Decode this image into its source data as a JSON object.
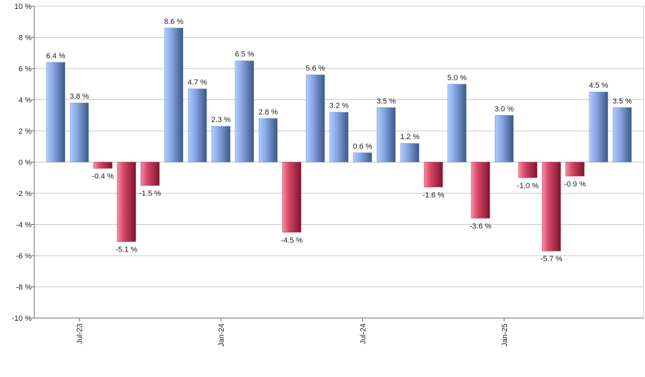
{
  "chart_data": {
    "type": "bar",
    "categories": [
      null,
      "Jul-23",
      null,
      null,
      null,
      null,
      null,
      "Jan-24",
      null,
      null,
      null,
      null,
      null,
      "Jul-24",
      null,
      null,
      null,
      null,
      null,
      "Jan-25",
      null,
      null,
      null,
      null,
      null
    ],
    "values": [
      6.4,
      3.8,
      -0.4,
      -5.1,
      -1.5,
      8.6,
      4.7,
      2.3,
      6.5,
      2.8,
      -4.5,
      5.6,
      3.2,
      0.6,
      3.5,
      1.2,
      -1.6,
      5.0,
      -3.6,
      3.0,
      -1.0,
      -5.7,
      -0.9,
      4.5,
      3.5
    ],
    "value_labels": [
      "6.4 %",
      "3.8 %",
      "-0.4 %",
      "-5.1 %",
      "-1.5 %",
      "8.6 %",
      "4.7 %",
      "2.3 %",
      "6.5 %",
      "2.8 %",
      "-4.5 %",
      "5.6 %",
      "3.2 %",
      "0.6 %",
      "3.5 %",
      "1.2 %",
      "-1.6 %",
      "5.0 %",
      "-3.6 %",
      "3.0 %",
      "-1.0 %",
      "-5.7 %",
      "-0.9 %",
      "4.5 %",
      "3.5 %"
    ],
    "positive_color": "#6f8fcc",
    "negative_color": "#c4304f",
    "ylim": [
      -10,
      10
    ],
    "yticks": [
      {
        "value": -10,
        "label": "-10 %"
      },
      {
        "value": -8,
        "label": "-8 %"
      },
      {
        "value": -6,
        "label": "-6 %"
      },
      {
        "value": -4,
        "label": "-4 %"
      },
      {
        "value": -2,
        "label": "-2 %"
      },
      {
        "value": 0,
        "label": "0 %"
      },
      {
        "value": 2,
        "label": "2 %"
      },
      {
        "value": 4,
        "label": "4 %"
      },
      {
        "value": 6,
        "label": "6 %"
      },
      {
        "value": 8,
        "label": "8 %"
      },
      {
        "value": 10,
        "label": "10 %"
      }
    ],
    "grid": true
  }
}
